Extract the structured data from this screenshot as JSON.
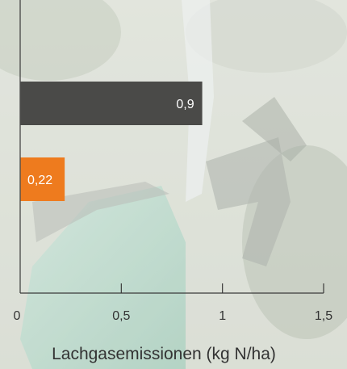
{
  "chart_data": {
    "type": "bar",
    "orientation": "horizontal",
    "categories": [
      "",
      ""
    ],
    "values": [
      0.9,
      0.22
    ],
    "value_labels": [
      "0,9",
      "0,22"
    ],
    "bar_colors": [
      "#4a4a48",
      "#ee7b1e"
    ],
    "xlabel": "Lachgasemissionen (kg N/ha)",
    "ylabel": "",
    "xlim": [
      0,
      1.5
    ],
    "xticks": [
      0,
      0.5,
      1,
      1.5
    ],
    "xtick_labels": [
      "0",
      "0,5",
      "1",
      "1,5"
    ],
    "grid": false,
    "legend": "none"
  },
  "colors": {
    "axis": "#3a3a3a",
    "text": "#333333",
    "label_on_bar": "#ffffff"
  }
}
